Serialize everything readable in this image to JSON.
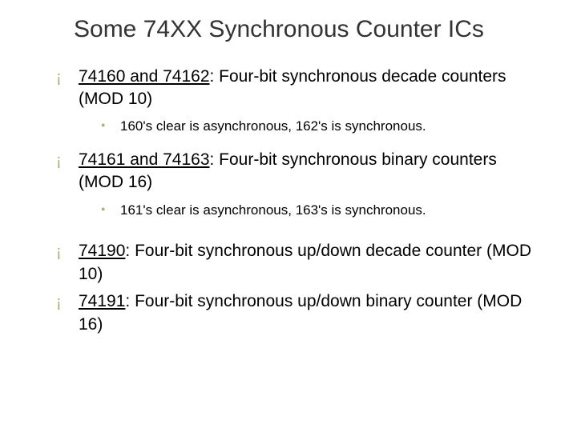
{
  "colors": {
    "bullet_color": "#9db56e",
    "text_color": "#000000",
    "title_color": "#333333",
    "background": "#ffffff"
  },
  "typography": {
    "title_fontsize": 30,
    "body_fontsize": 21,
    "sub_fontsize": 17,
    "title_font": "Arial",
    "body_font": "Verdana"
  },
  "title": "Some 74XX Synchronous Counter ICs",
  "items": [
    {
      "label": "74160 and 74162",
      "desc": ": Four-bit synchronous decade counters (MOD 10)",
      "sub": "160's clear is asynchronous, 162's is synchronous."
    },
    {
      "label": "74161 and 74163",
      "desc": ": Four-bit synchronous binary counters (MOD 16)",
      "sub": "161's clear is asynchronous, 163's is synchronous."
    },
    {
      "label": "74190",
      "desc": ": Four-bit synchronous up/down decade counter (MOD 10)",
      "sub": null
    },
    {
      "label": "74191",
      "desc": ": Four-bit synchronous up/down binary counter (MOD 16)",
      "sub": null
    }
  ]
}
